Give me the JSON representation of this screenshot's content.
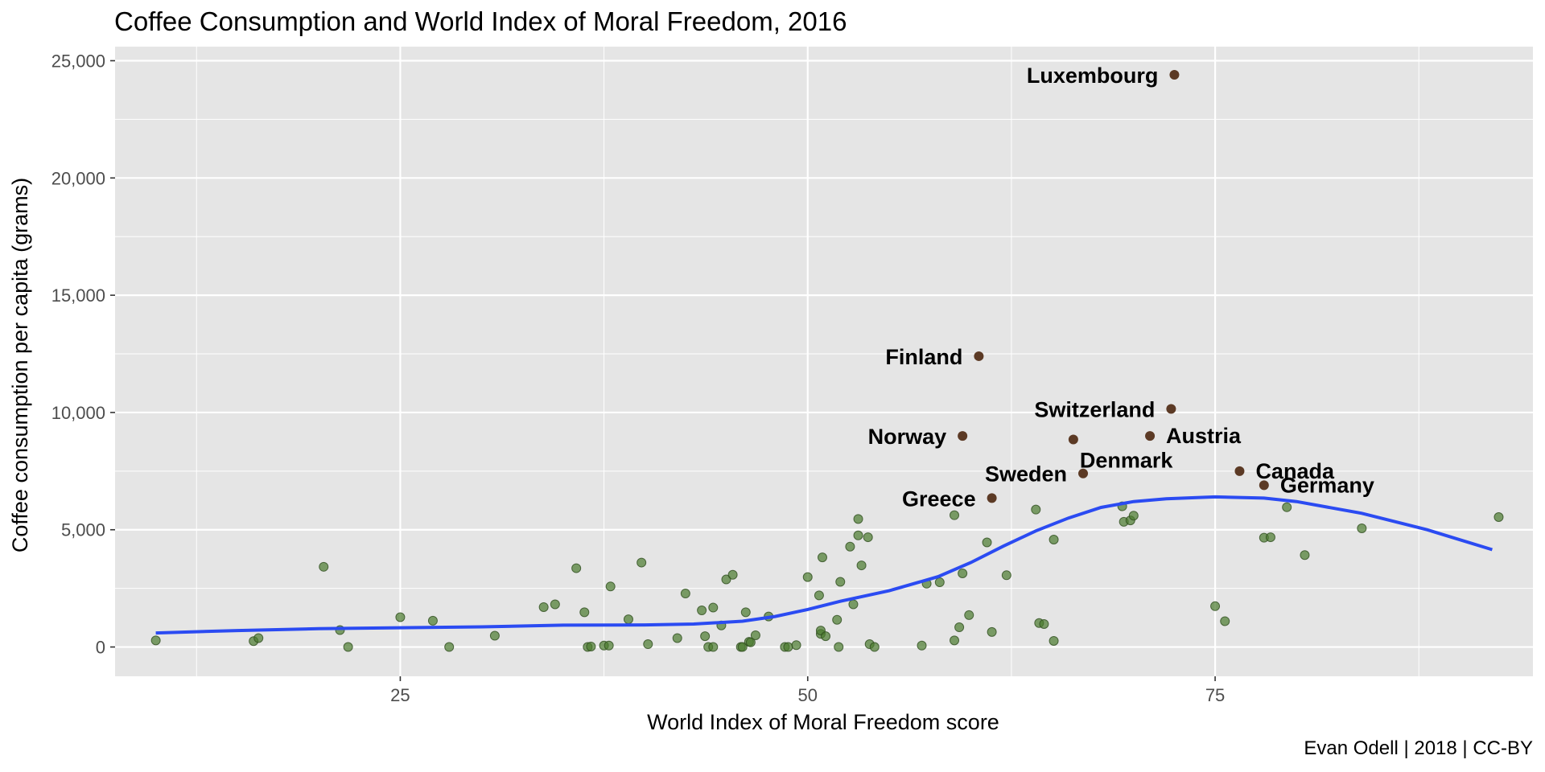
{
  "chart_data": {
    "type": "scatter",
    "title": "Coffee Consumption and World Index of Moral Freedom, 2016",
    "xlabel": "World Index of Moral Freedom score",
    "ylabel": "Coffee consumption per capita (grams)",
    "caption": "Evan Odell | 2018 | CC-BY",
    "xlim": [
      7.5,
      94.5
    ],
    "ylim": [
      -1250,
      25600
    ],
    "xticks": [
      25,
      50,
      75
    ],
    "xtick_labels": [
      "25",
      "50",
      "75"
    ],
    "yticks": [
      0,
      5000,
      10000,
      15000,
      20000,
      25000
    ],
    "ytick_labels": [
      "0",
      "5,000",
      "10,000",
      "15,000",
      "20,000",
      "25,000"
    ],
    "grid": true,
    "legend": "none",
    "colors": {
      "panel": "#e5e5e5",
      "grid": "#ffffff",
      "point": "#4a7a2e",
      "highlight": "#5c3a25",
      "smooth": "#2b4bf2"
    },
    "highlighted": [
      {
        "label": "Luxembourg",
        "x": 72.5,
        "y": 24400,
        "anchor": "end"
      },
      {
        "label": "Finland",
        "x": 60.5,
        "y": 12400,
        "anchor": "end"
      },
      {
        "label": "Switzerland",
        "x": 72.3,
        "y": 10150,
        "anchor": "end"
      },
      {
        "label": "Norway",
        "x": 59.5,
        "y": 9000,
        "anchor": "end"
      },
      {
        "label": "Austria",
        "x": 71.0,
        "y": 9000,
        "anchor": "start"
      },
      {
        "label": "Denmark",
        "x": 66.3,
        "y": 8850,
        "anchor": "start-below"
      },
      {
        "label": "Sweden",
        "x": 66.9,
        "y": 7400,
        "anchor": "end"
      },
      {
        "label": "Canada",
        "x": 76.5,
        "y": 7500,
        "anchor": "start"
      },
      {
        "label": "Germany",
        "x": 78.0,
        "y": 6900,
        "anchor": "start"
      },
      {
        "label": "Greece",
        "x": 61.3,
        "y": 6350,
        "anchor": "end"
      }
    ],
    "points": [
      [
        10.0,
        280
      ],
      [
        16.0,
        250
      ],
      [
        16.3,
        380
      ],
      [
        20.3,
        3420
      ],
      [
        21.3,
        720
      ],
      [
        21.8,
        0
      ],
      [
        25.0,
        1270
      ],
      [
        27.0,
        1120
      ],
      [
        28.0,
        0
      ],
      [
        30.8,
        480
      ],
      [
        33.8,
        1700
      ],
      [
        34.5,
        1820
      ],
      [
        35.8,
        3360
      ],
      [
        36.3,
        1480
      ],
      [
        36.5,
        0
      ],
      [
        36.7,
        20
      ],
      [
        37.5,
        60
      ],
      [
        37.8,
        60
      ],
      [
        37.9,
        2580
      ],
      [
        39.0,
        1180
      ],
      [
        39.8,
        3600
      ],
      [
        40.2,
        120
      ],
      [
        42.0,
        380
      ],
      [
        42.5,
        2280
      ],
      [
        43.5,
        1560
      ],
      [
        43.7,
        460
      ],
      [
        43.9,
        0
      ],
      [
        44.2,
        1680
      ],
      [
        44.2,
        0
      ],
      [
        44.7,
        920
      ],
      [
        45.0,
        2880
      ],
      [
        45.4,
        3080
      ],
      [
        45.9,
        0
      ],
      [
        46.0,
        0
      ],
      [
        46.2,
        1480
      ],
      [
        46.4,
        220
      ],
      [
        46.5,
        200
      ],
      [
        46.8,
        500
      ],
      [
        47.6,
        1300
      ],
      [
        48.6,
        0
      ],
      [
        48.8,
        0
      ],
      [
        49.3,
        80
      ],
      [
        50.0,
        2980
      ],
      [
        50.7,
        2200
      ],
      [
        50.8,
        560
      ],
      [
        50.8,
        700
      ],
      [
        50.9,
        3820
      ],
      [
        51.1,
        460
      ],
      [
        51.8,
        1160
      ],
      [
        51.9,
        0
      ],
      [
        52.0,
        2780
      ],
      [
        52.6,
        4280
      ],
      [
        52.8,
        1820
      ],
      [
        53.1,
        4760
      ],
      [
        53.1,
        5460
      ],
      [
        53.3,
        3480
      ],
      [
        53.7,
        4680
      ],
      [
        53.8,
        120
      ],
      [
        54.1,
        0
      ],
      [
        57.0,
        60
      ],
      [
        57.3,
        2700
      ],
      [
        58.1,
        2760
      ],
      [
        59.0,
        5620
      ],
      [
        59.0,
        280
      ],
      [
        59.3,
        840
      ],
      [
        59.5,
        3140
      ],
      [
        59.9,
        1360
      ],
      [
        61.0,
        4460
      ],
      [
        61.3,
        640
      ],
      [
        62.2,
        3060
      ],
      [
        64.0,
        5860
      ],
      [
        64.2,
        1020
      ],
      [
        64.5,
        980
      ],
      [
        65.1,
        4580
      ],
      [
        65.1,
        260
      ],
      [
        69.3,
        6000
      ],
      [
        69.4,
        5340
      ],
      [
        69.8,
        5400
      ],
      [
        70.0,
        5600
      ],
      [
        75.0,
        1740
      ],
      [
        75.6,
        1100
      ],
      [
        78.0,
        4660
      ],
      [
        78.4,
        4680
      ],
      [
        79.4,
        5960
      ],
      [
        80.5,
        3920
      ],
      [
        84.0,
        5060
      ],
      [
        92.4,
        5540
      ]
    ],
    "smooth": [
      [
        10.0,
        600
      ],
      [
        15.0,
        700
      ],
      [
        20.0,
        780
      ],
      [
        25.0,
        820
      ],
      [
        30.0,
        860
      ],
      [
        35.0,
        930
      ],
      [
        40.0,
        940
      ],
      [
        43.0,
        980
      ],
      [
        46.0,
        1100
      ],
      [
        48.0,
        1300
      ],
      [
        50.0,
        1600
      ],
      [
        52.0,
        1950
      ],
      [
        55.0,
        2400
      ],
      [
        58.0,
        3000
      ],
      [
        60.0,
        3600
      ],
      [
        62.0,
        4300
      ],
      [
        64.0,
        4950
      ],
      [
        66.0,
        5500
      ],
      [
        68.0,
        5950
      ],
      [
        70.0,
        6200
      ],
      [
        72.0,
        6320
      ],
      [
        75.0,
        6400
      ],
      [
        78.0,
        6350
      ],
      [
        80.0,
        6200
      ],
      [
        84.0,
        5700
      ],
      [
        88.0,
        5000
      ],
      [
        92.0,
        4150
      ]
    ]
  }
}
